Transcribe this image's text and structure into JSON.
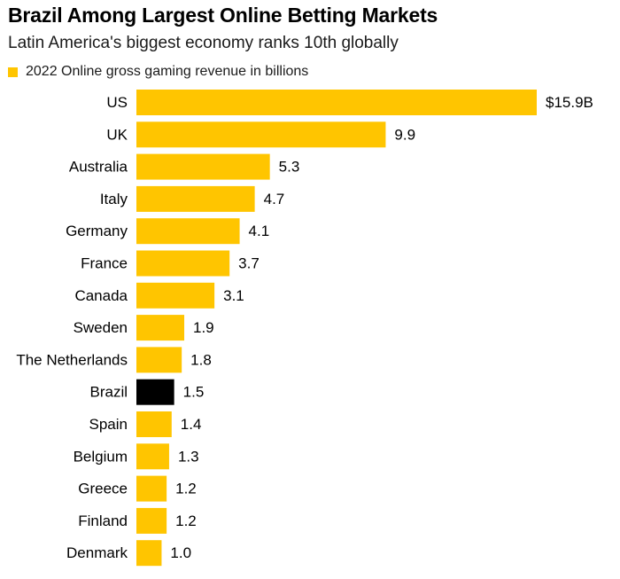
{
  "title": "Brazil Among Largest Online Betting Markets",
  "subtitle": "Latin America's biggest economy ranks 10th globally",
  "legend": {
    "label": "2022 Online gross gaming revenue in billions",
    "color": "#ffc500"
  },
  "colors": {
    "default_bar": "#ffc500",
    "highlight_bar": "#000000"
  },
  "chart_data": {
    "type": "bar",
    "orientation": "horizontal",
    "categories": [
      "US",
      "UK",
      "Australia",
      "Italy",
      "Germany",
      "France",
      "Canada",
      "Sweden",
      "The Netherlands",
      "Brazil",
      "Spain",
      "Belgium",
      "Greece",
      "Finland",
      "Denmark"
    ],
    "values": [
      15.9,
      9.9,
      5.3,
      4.7,
      4.1,
      3.7,
      3.1,
      1.9,
      1.8,
      1.5,
      1.4,
      1.3,
      1.2,
      1.2,
      1.0
    ],
    "value_labels": [
      "$15.9B",
      "9.9",
      "5.3",
      "4.7",
      "4.1",
      "3.7",
      "3.1",
      "1.9",
      "1.8",
      "1.5",
      "1.4",
      "1.3",
      "1.2",
      "1.2",
      "1.0"
    ],
    "highlight": "Brazil",
    "series": [
      {
        "name": "2022 Online gross gaming revenue in billions"
      }
    ],
    "xlim": [
      0,
      15.9
    ],
    "grid": false,
    "legend_position": "top-left"
  }
}
